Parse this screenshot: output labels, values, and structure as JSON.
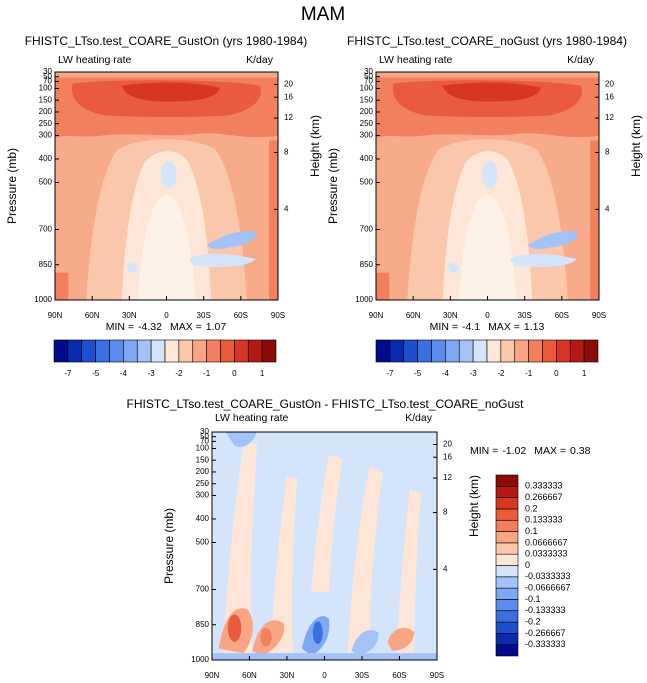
{
  "title": "MAM",
  "panels": [
    {
      "title": "FHISTC_LTso.test_COARE_GustOn (yrs 1980-1984)",
      "left_string": "LW heating rate",
      "right_string": "K/day",
      "ylabel": "Pressure (mb)",
      "y2label": "Height (km)",
      "xticks": [
        "90N",
        "60N",
        "30N",
        "0",
        "30S",
        "60S",
        "90S"
      ],
      "ylim": [
        1000,
        30
      ],
      "yticks": [
        1000,
        850,
        700,
        500,
        400,
        300,
        250,
        200,
        150,
        100,
        70,
        50,
        30
      ],
      "y2ticks": [
        4,
        8,
        12,
        16,
        20
      ],
      "min_label": "MIN =",
      "min": -4.32,
      "max_label": "MAX =",
      "max": 1.07,
      "colorbar": {
        "colors": [
          "#000c8c",
          "#0a2ab0",
          "#1d4fd1",
          "#3a6fe0",
          "#5b8ced",
          "#7ea8f4",
          "#a3c3f8",
          "#d4e4fb",
          "#fde6d8",
          "#fbc7ab",
          "#f8a583",
          "#f2805f",
          "#ea5a3d",
          "#d63622",
          "#b51a12",
          "#8c0a08"
        ],
        "levels": [
          -7,
          -6,
          -5,
          -4.5,
          -4,
          -3.5,
          -3,
          -2.5,
          -2,
          -1.5,
          -1,
          -0.5,
          0,
          0.5,
          1
        ],
        "ticks": [
          -7,
          -5,
          -4,
          -3,
          -2,
          -1,
          0,
          1
        ]
      }
    },
    {
      "title": "FHISTC_LTso.test_COARE_noGust (yrs 1980-1984)",
      "left_string": "LW heating rate",
      "right_string": "K/day",
      "ylabel": "Pressure (mb)",
      "y2label": "Height (km)",
      "xticks": [
        "90N",
        "60N",
        "30N",
        "0",
        "30S",
        "60S",
        "90S"
      ],
      "ylim": [
        1000,
        30
      ],
      "yticks": [
        1000,
        850,
        700,
        500,
        400,
        300,
        250,
        200,
        150,
        100,
        70,
        50,
        30
      ],
      "y2ticks": [
        4,
        8,
        12,
        16,
        20
      ],
      "min_label": "MIN =",
      "min": -4.1,
      "max_label": "MAX =",
      "max": 1.13,
      "colorbar": {
        "colors": [
          "#000c8c",
          "#0a2ab0",
          "#1d4fd1",
          "#3a6fe0",
          "#5b8ced",
          "#7ea8f4",
          "#a3c3f8",
          "#d4e4fb",
          "#fde6d8",
          "#fbc7ab",
          "#f8a583",
          "#f2805f",
          "#ea5a3d",
          "#d63622",
          "#b51a12",
          "#8c0a08"
        ],
        "levels": [
          -7,
          -6,
          -5,
          -4.5,
          -4,
          -3.5,
          -3,
          -2.5,
          -2,
          -1.5,
          -1,
          -0.5,
          0,
          0.5,
          1
        ],
        "ticks": [
          -7,
          -5,
          -4,
          -3,
          -2,
          -1,
          0,
          1
        ]
      }
    },
    {
      "title": "FHISTC_LTso.test_COARE_GustOn - FHISTC_LTso.test_COARE_noGust",
      "left_string": "LW heating rate",
      "right_string": "K/day",
      "ylabel": "Pressure (mb)",
      "y2label": "Height (km)",
      "xticks": [
        "90N",
        "60N",
        "30N",
        "0",
        "30S",
        "60S",
        "90S"
      ],
      "ylim": [
        1000,
        30
      ],
      "yticks": [
        1000,
        850,
        700,
        500,
        400,
        300,
        250,
        200,
        150,
        100,
        70,
        50,
        30
      ],
      "y2ticks": [
        4,
        8,
        12,
        16,
        20
      ],
      "min_label": "MIN =",
      "min": -1.02,
      "max_label": "MAX =",
      "max": 0.38,
      "colorbar": {
        "colors": [
          "#000c8c",
          "#0a2ab0",
          "#1d4fd1",
          "#3a6fe0",
          "#5b8ced",
          "#7ea8f4",
          "#a3c3f8",
          "#d4e4fb",
          "#fde6d8",
          "#fbc7ab",
          "#f8a583",
          "#f2805f",
          "#ea5a3d",
          "#d63622",
          "#b51a12",
          "#8c0a08"
        ],
        "levels": [
          -0.333333,
          -0.266667,
          -0.2,
          -0.133333,
          -0.1,
          -0.0666667,
          -0.0333333,
          0,
          0.0333333,
          0.0666667,
          0.1,
          0.133333,
          0.2,
          0.266667,
          0.333333
        ]
      }
    }
  ]
}
